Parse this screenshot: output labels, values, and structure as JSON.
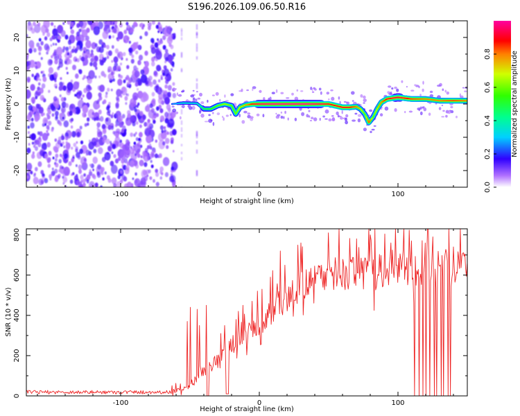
{
  "title": "S196.2026.109.06.50.R16",
  "chart_data": [
    {
      "type": "heatmap",
      "title": "S196.2026.109.06.50.R16",
      "xlabel": "Height of straight line (km)",
      "ylabel": "Frequency (Hz)",
      "xlim": [
        -168,
        150
      ],
      "ylim": [
        -25,
        25
      ],
      "xticks": [
        -100,
        0,
        100
      ],
      "yticks": [
        -20,
        -10,
        0,
        10,
        20
      ],
      "colorbar": {
        "label": "Normalized spectral amplitude",
        "range": [
          0,
          1
        ],
        "ticks": [
          "0.0",
          "0.2",
          "0.4",
          "0.6",
          "0.8"
        ]
      },
      "noise_region_x": [
        -168,
        -63
      ],
      "ridge": {
        "x": [
          -63,
          -55,
          -45,
          -40,
          -35,
          -30,
          -25,
          -20,
          -17,
          -14,
          -10,
          -5,
          0,
          10,
          20,
          35,
          50,
          55,
          60,
          65,
          70,
          73,
          76,
          79,
          82,
          85,
          88,
          92,
          100,
          110,
          120,
          130,
          140,
          150
        ],
        "y": [
          0,
          0.3,
          0.2,
          -1.5,
          -1.5,
          -0.5,
          0,
          -0.5,
          -3,
          -1,
          -0.3,
          0,
          0,
          0,
          0,
          0,
          0,
          -0.5,
          -1,
          -1,
          -0.8,
          -1.5,
          -3,
          -5.5,
          -4,
          -1.5,
          0.5,
          1.5,
          2,
          1.5,
          1.5,
          1,
          1,
          1
        ],
        "amp": [
          0.25,
          0.35,
          0.35,
          0.5,
          0.55,
          0.6,
          0.65,
          0.6,
          0.6,
          0.7,
          0.75,
          0.9,
          0.95,
          1.0,
          1.0,
          1.0,
          0.9,
          0.9,
          0.9,
          0.9,
          0.8,
          0.7,
          0.6,
          0.85,
          0.6,
          0.7,
          0.8,
          0.9,
          0.95,
          0.85,
          0.8,
          0.8,
          0.85,
          0.8
        ]
      }
    },
    {
      "type": "line",
      "xlabel": "Height of straight line (km)",
      "ylabel": "SNR (10 * v/v)",
      "xlim": [
        -168,
        150
      ],
      "ylim": [
        0,
        830
      ],
      "xticks": [
        -100,
        0,
        100
      ],
      "yticks": [
        0,
        200,
        400,
        600,
        800
      ],
      "series": [
        {
          "name": "SNR",
          "color": "#ee2222",
          "baseline": {
            "x": [
              -168,
              -65,
              -55,
              -45,
              -40,
              -30,
              -20,
              -10,
              0,
              10,
              20,
              30,
              40,
              50,
              60,
              70,
              80,
              90,
              100,
              110,
              120,
              130,
              140,
              150
            ],
            "y": [
              15,
              15,
              20,
              80,
              120,
              170,
              250,
              300,
              350,
              420,
              480,
              540,
              570,
              590,
              600,
              610,
              600,
              610,
              620,
              630,
              630,
              640,
              640,
              650
            ]
          },
          "spikes": {
            "x": [
              -57,
              -52,
              -50,
              -45,
              -43,
              -38,
              -28,
              -25,
              -17,
              -15,
              -12,
              -8,
              -5,
              2,
              8,
              15,
              30,
              50,
              70,
              80,
              95,
              98,
              110,
              122,
              125
            ],
            "y": [
              60,
              370,
              440,
              430,
              350,
              450,
              310,
              350,
              380,
              420,
              450,
              330,
              470,
              530,
              590,
              720,
              760,
              810,
              780,
              800,
              760,
              830,
              770,
              830,
              790
            ]
          },
          "dropouts_x": [
            112,
            115,
            118,
            120,
            123,
            126,
            128,
            131,
            133,
            136,
            138
          ]
        }
      ]
    }
  ]
}
